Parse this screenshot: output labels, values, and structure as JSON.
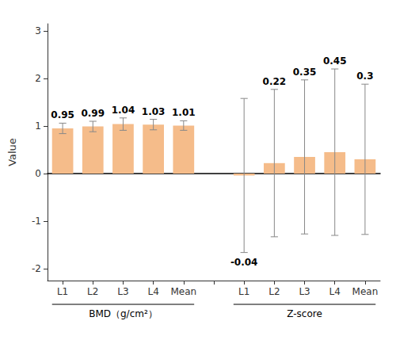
{
  "chart_data": {
    "type": "bar",
    "categories": [
      "L1",
      "L2",
      "L3",
      "L4",
      "Mean",
      "L1",
      "L2",
      "L3",
      "L4",
      "Mean"
    ],
    "groups": [
      "BMD（g/cm²）",
      "BMD（g/cm²）",
      "BMD（g/cm²）",
      "BMD（g/cm²）",
      "BMD（g/cm²）",
      "Z-score",
      "Z-score",
      "Z-score",
      "Z-score",
      "Z-score"
    ],
    "values": [
      0.95,
      0.99,
      1.04,
      1.03,
      1.01,
      -0.04,
      0.22,
      0.35,
      0.45,
      0.3
    ],
    "errors": [
      0.11,
      0.11,
      0.13,
      0.11,
      0.1,
      1.62,
      1.55,
      1.62,
      1.75,
      1.58
    ],
    "color": "#F5BC8A",
    "ylabel": "Value",
    "ylim": [
      -2.25,
      3.15
    ],
    "yticks": [
      -2,
      -1,
      0,
      1,
      2,
      3
    ],
    "grid": false,
    "data_labels": true
  }
}
